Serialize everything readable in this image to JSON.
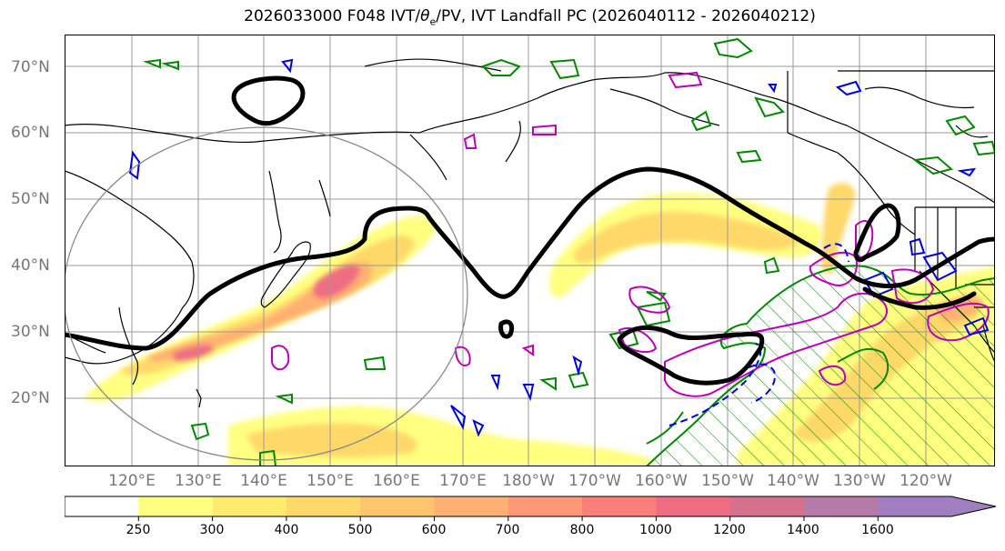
{
  "title": {
    "init": "2026033000 F048 IVT/",
    "theta_sym": "θ",
    "theta_sub": "e",
    "rest": "/PV, IVT Landfall PC (2026040112 - 2026040212)"
  },
  "map": {
    "projection": "PlateCarree, Pacific-centered",
    "lat_labels": [
      "70°N",
      "60°N",
      "50°N",
      "40°N",
      "30°N",
      "20°N"
    ],
    "lon_labels": [
      "120°E",
      "130°E",
      "140°E",
      "150°E",
      "160°E",
      "170°E",
      "180°W",
      "170°W",
      "160°W",
      "150°W",
      "140°W",
      "130°W",
      "120°W"
    ],
    "gridlines": true,
    "layers": [
      {
        "name": "IVT",
        "style": "filled contours"
      },
      {
        "name": "theta_e",
        "style": "black contour"
      },
      {
        "name": "PV",
        "style": "magenta/blue/green contours"
      },
      {
        "name": "landfall_pc",
        "style": "green hatched region"
      }
    ]
  },
  "colorbar": {
    "ticks": [
      "250",
      "300",
      "400",
      "500",
      "600",
      "700",
      "800",
      "1000",
      "1200",
      "1400",
      "1600"
    ],
    "colors": [
      "#ffffff",
      "#ffff80",
      "#ffec6e",
      "#ffd86a",
      "#ffc46e",
      "#ffb072",
      "#ff9876",
      "#f9807a",
      "#ee6d82",
      "#d6708f",
      "#b67aa8",
      "#a07ec0"
    ]
  },
  "colors": {
    "contour_black": "#000000",
    "contour_green": "#008800",
    "contour_magenta": "#bb00bb",
    "contour_blue": "#0000dd",
    "grid": "#999999",
    "coast": "#000000",
    "tick_label": "#777777"
  }
}
